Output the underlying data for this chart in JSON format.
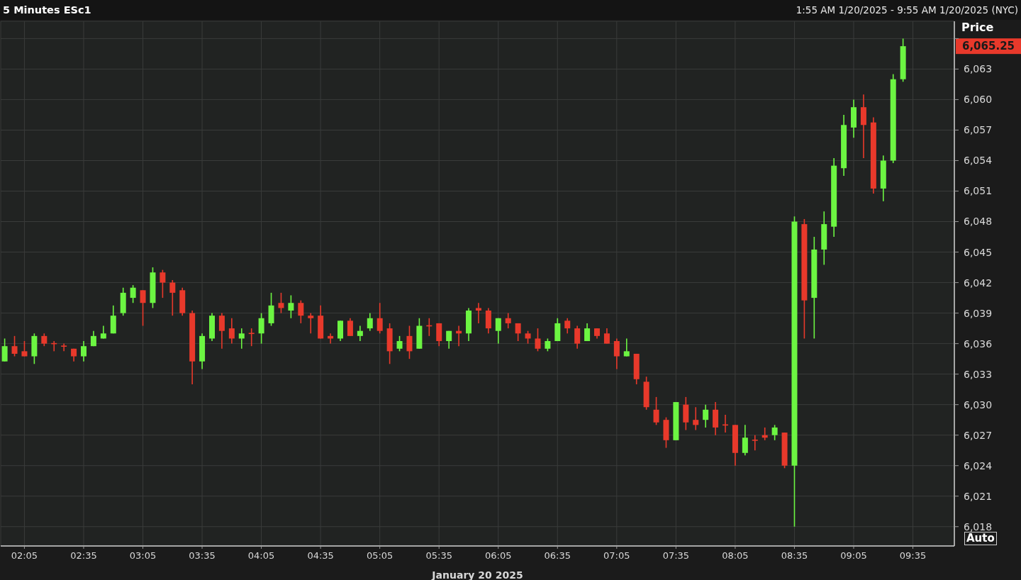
{
  "chart_data": {
    "type": "candlestick",
    "title": "5 Minutes ESc1",
    "subtitle": "1:55 AM 1/20/2025 - 9:55 AM 1/20/2025 (NYC)",
    "xlabel": "January 20 2025",
    "ylabel": "Price",
    "x": [
      "2025-01-20T01:55",
      "2025-01-20T02:00",
      "2025-01-20T02:05",
      "2025-01-20T02:10",
      "2025-01-20T02:15",
      "2025-01-20T02:20",
      "2025-01-20T02:25",
      "2025-01-20T02:30",
      "2025-01-20T02:35",
      "2025-01-20T02:40",
      "2025-01-20T02:45",
      "2025-01-20T02:50",
      "2025-01-20T02:55",
      "2025-01-20T03:00",
      "2025-01-20T03:05",
      "2025-01-20T03:10",
      "2025-01-20T03:15",
      "2025-01-20T03:20",
      "2025-01-20T03:25",
      "2025-01-20T03:30",
      "2025-01-20T03:35",
      "2025-01-20T03:40",
      "2025-01-20T03:45",
      "2025-01-20T03:50",
      "2025-01-20T03:55",
      "2025-01-20T04:00",
      "2025-01-20T04:05",
      "2025-01-20T04:10",
      "2025-01-20T04:15",
      "2025-01-20T04:20",
      "2025-01-20T04:25",
      "2025-01-20T04:30",
      "2025-01-20T04:35",
      "2025-01-20T04:40",
      "2025-01-20T04:45",
      "2025-01-20T04:50",
      "2025-01-20T04:55",
      "2025-01-20T05:00",
      "2025-01-20T05:05",
      "2025-01-20T05:10",
      "2025-01-20T05:15",
      "2025-01-20T05:20",
      "2025-01-20T05:25",
      "2025-01-20T05:30",
      "2025-01-20T05:35",
      "2025-01-20T05:40",
      "2025-01-20T05:45",
      "2025-01-20T05:50",
      "2025-01-20T05:55",
      "2025-01-20T06:00",
      "2025-01-20T06:05",
      "2025-01-20T06:10",
      "2025-01-20T06:15",
      "2025-01-20T06:20",
      "2025-01-20T06:25",
      "2025-01-20T06:30",
      "2025-01-20T06:35",
      "2025-01-20T06:40",
      "2025-01-20T06:45",
      "2025-01-20T06:50",
      "2025-01-20T06:55",
      "2025-01-20T07:00",
      "2025-01-20T07:05",
      "2025-01-20T07:10",
      "2025-01-20T07:15",
      "2025-01-20T07:20",
      "2025-01-20T07:25",
      "2025-01-20T07:30",
      "2025-01-20T07:35",
      "2025-01-20T07:40",
      "2025-01-20T07:45",
      "2025-01-20T07:50",
      "2025-01-20T07:55",
      "2025-01-20T08:00",
      "2025-01-20T08:05",
      "2025-01-20T08:10",
      "2025-01-20T08:15",
      "2025-01-20T08:20",
      "2025-01-20T08:25",
      "2025-01-20T08:30",
      "2025-01-20T08:35",
      "2025-01-20T08:40",
      "2025-01-20T08:45",
      "2025-01-20T08:50",
      "2025-01-20T08:55",
      "2025-01-20T09:00",
      "2025-01-20T09:05",
      "2025-01-20T09:10",
      "2025-01-20T09:15",
      "2025-01-20T09:20",
      "2025-01-20T09:25",
      "2025-01-20T09:30"
    ],
    "ohlc": [
      [
        6034.25,
        6036.5,
        6034.25,
        6035.75
      ],
      [
        6035.75,
        6036.75,
        6034.75,
        6035
      ],
      [
        6035.25,
        6036.25,
        6034.75,
        6034.75
      ],
      [
        6034.75,
        6037,
        6034,
        6036.75
      ],
      [
        6036.75,
        6037,
        6035.75,
        6036
      ],
      [
        6036,
        6036.25,
        6035.25,
        6036
      ],
      [
        6035.75,
        6036,
        6035.25,
        6035.75
      ],
      [
        6035.5,
        6035.5,
        6034.25,
        6034.75
      ],
      [
        6034.75,
        6036.25,
        6034.25,
        6035.75
      ],
      [
        6035.75,
        6037.25,
        6035.75,
        6036.75
      ],
      [
        6036.5,
        6037.75,
        6036.5,
        6037
      ],
      [
        6037,
        6039.75,
        6037,
        6038.75
      ],
      [
        6039,
        6041.5,
        6038.75,
        6041
      ],
      [
        6040.5,
        6041.75,
        6040,
        6041.5
      ],
      [
        6041.25,
        6041.25,
        6037.75,
        6040
      ],
      [
        6040,
        6043.5,
        6039.5,
        6043
      ],
      [
        6043,
        6043.25,
        6040.5,
        6042
      ],
      [
        6042,
        6042.25,
        6038.75,
        6041
      ],
      [
        6041.25,
        6041.5,
        6038.75,
        6039
      ],
      [
        6039,
        6039.25,
        6032,
        6034.25
      ],
      [
        6034.25,
        6037,
        6033.5,
        6036.75
      ],
      [
        6036.5,
        6039,
        6036.25,
        6038.75
      ],
      [
        6038.75,
        6039,
        6035.5,
        6037.25
      ],
      [
        6037.5,
        6038.5,
        6036,
        6036.5
      ],
      [
        6036.5,
        6037.5,
        6035.5,
        6037
      ],
      [
        6037,
        6037.5,
        6035.75,
        6037
      ],
      [
        6037,
        6039,
        6036,
        6038.5
      ],
      [
        6038,
        6041,
        6037.75,
        6039.75
      ],
      [
        6040,
        6041,
        6039,
        6039.5
      ],
      [
        6039.25,
        6040.75,
        6038.5,
        6040
      ],
      [
        6040,
        6040.25,
        6038,
        6038.75
      ],
      [
        6038.75,
        6039,
        6037,
        6038.5
      ],
      [
        6038.75,
        6039.75,
        6036.5,
        6036.5
      ],
      [
        6036.75,
        6037,
        6036,
        6036.5
      ],
      [
        6036.5,
        6038.25,
        6036.25,
        6038.25
      ],
      [
        6038.25,
        6038.5,
        6036.75,
        6036.75
      ],
      [
        6036.75,
        6037.75,
        6036.25,
        6037.25
      ],
      [
        6037.5,
        6039,
        6037.25,
        6038.5
      ],
      [
        6038.5,
        6040,
        6037,
        6037.25
      ],
      [
        6037.5,
        6038,
        6034,
        6035.25
      ],
      [
        6035.5,
        6036.75,
        6035.25,
        6036.25
      ],
      [
        6036.75,
        6037.75,
        6034.5,
        6035.25
      ],
      [
        6035.5,
        6038.5,
        6035.5,
        6037.75
      ],
      [
        6037.75,
        6038.5,
        6036.75,
        6037.75
      ],
      [
        6038,
        6038,
        6035.75,
        6036.25
      ],
      [
        6036.25,
        6037.25,
        6035.5,
        6037.25
      ],
      [
        6037.25,
        6037.75,
        6035.75,
        6037
      ],
      [
        6037,
        6039.5,
        6036.25,
        6039.25
      ],
      [
        6039.5,
        6040,
        6038,
        6039.25
      ],
      [
        6039.25,
        6039.5,
        6037,
        6037.5
      ],
      [
        6037.25,
        6038.5,
        6036,
        6038.5
      ],
      [
        6038.5,
        6039,
        6037.5,
        6038
      ],
      [
        6038,
        6038,
        6036.25,
        6037
      ],
      [
        6037,
        6037.25,
        6036,
        6036.5
      ],
      [
        6036.5,
        6037.5,
        6035.25,
        6035.5
      ],
      [
        6035.5,
        6036.5,
        6035.25,
        6036.25
      ],
      [
        6036.25,
        6038.5,
        6036.25,
        6038
      ],
      [
        6038.25,
        6038.5,
        6037,
        6037.5
      ],
      [
        6037.5,
        6037.75,
        6035.5,
        6036
      ],
      [
        6036.25,
        6038,
        6036.25,
        6037.5
      ],
      [
        6037.5,
        6037.5,
        6036.5,
        6036.75
      ],
      [
        6037,
        6037.5,
        6036,
        6036
      ],
      [
        6036.25,
        6036.5,
        6033.5,
        6034.75
      ],
      [
        6034.75,
        6036.5,
        6034.75,
        6035.25
      ],
      [
        6035,
        6035,
        6032,
        6032.5
      ],
      [
        6032.25,
        6032.75,
        6029.5,
        6029.75
      ],
      [
        6029.5,
        6030.75,
        6028,
        6028.25
      ],
      [
        6028.5,
        6028.75,
        6025.75,
        6026.5
      ],
      [
        6026.5,
        6030.25,
        6026.5,
        6030.25
      ],
      [
        6030,
        6030.75,
        6027.5,
        6028.25
      ],
      [
        6028.5,
        6029.75,
        6027.5,
        6028
      ],
      [
        6028.5,
        6030,
        6027.75,
        6029.5
      ],
      [
        6029.5,
        6030.25,
        6027,
        6027.75
      ],
      [
        6028,
        6029,
        6027.25,
        6028
      ],
      [
        6028,
        6028,
        6024,
        6025.25
      ],
      [
        6025.25,
        6028,
        6025,
        6026.75
      ],
      [
        6026.5,
        6027,
        6025.5,
        6026.5
      ],
      [
        6027,
        6027.75,
        6026.5,
        6026.75
      ],
      [
        6027,
        6028,
        6026.5,
        6027.75
      ],
      [
        6027.25,
        6027.25,
        6023.75,
        6024
      ],
      [
        6024,
        6048.5,
        6018,
        6048
      ],
      [
        6047.75,
        6048.25,
        6036.5,
        6040.25
      ],
      [
        6040.5,
        6046.5,
        6036.5,
        6045.25
      ],
      [
        6045.25,
        6049,
        6043.75,
        6047.75
      ],
      [
        6047.5,
        6054.25,
        6046.5,
        6053.5
      ],
      [
        6053.25,
        6058.5,
        6052.5,
        6057.5
      ],
      [
        6057.25,
        6060,
        6056.25,
        6059.25
      ],
      [
        6059.25,
        6060.5,
        6054.25,
        6057.5
      ],
      [
        6057.75,
        6058.25,
        6050.75,
        6051.25
      ],
      [
        6051.25,
        6054.5,
        6050,
        6054
      ],
      [
        6054,
        6062.5,
        6053.75,
        6062
      ],
      [
        6062,
        6066,
        6061.75,
        6065.25
      ]
    ],
    "colors": [
      "#6cf542",
      "#e8392b",
      "#e8392b",
      "#6cf542",
      "#e8392b",
      "#e8392b",
      "#e8392b",
      "#e8392b",
      "#6cf542",
      "#6cf542",
      "#6cf542",
      "#6cf542",
      "#6cf542",
      "#6cf542",
      "#e8392b",
      "#6cf542",
      "#e8392b",
      "#e8392b",
      "#e8392b",
      "#e8392b",
      "#6cf542",
      "#6cf542",
      "#e8392b",
      "#e8392b",
      "#6cf542",
      "#e8392b",
      "#6cf542",
      "#6cf542",
      "#e8392b",
      "#6cf542",
      "#e8392b",
      "#e8392b",
      "#e8392b",
      "#e8392b",
      "#6cf542",
      "#e8392b",
      "#6cf542",
      "#6cf542",
      "#e8392b",
      "#e8392b",
      "#6cf542",
      "#e8392b",
      "#6cf542",
      "#e8392b",
      "#e8392b",
      "#6cf542",
      "#e8392b",
      "#6cf542",
      "#e8392b",
      "#e8392b",
      "#6cf542",
      "#e8392b",
      "#e8392b",
      "#e8392b",
      "#e8392b",
      "#6cf542",
      "#6cf542",
      "#e8392b",
      "#e8392b",
      "#6cf542",
      "#e8392b",
      "#e8392b",
      "#e8392b",
      "#6cf542",
      "#e8392b",
      "#e8392b",
      "#e8392b",
      "#e8392b",
      "#6cf542",
      "#e8392b",
      "#e8392b",
      "#6cf542",
      "#e8392b",
      "#e8392b",
      "#e8392b",
      "#6cf542",
      "#e8392b",
      "#e8392b",
      "#6cf542",
      "#e8392b",
      "#6cf542",
      "#e8392b",
      "#6cf542",
      "#6cf542",
      "#6cf542",
      "#6cf542",
      "#6cf542",
      "#e8392b",
      "#e8392b",
      "#6cf542",
      "#6cf542",
      "#6cf542"
    ],
    "xlim": [
      "2025-01-20T01:53",
      "2025-01-20T09:56"
    ],
    "xticks": [
      {
        "value": "2025-01-20T02:05",
        "label": "02:05"
      },
      {
        "value": "2025-01-20T02:35",
        "label": "02:35"
      },
      {
        "value": "2025-01-20T03:05",
        "label": "03:05"
      },
      {
        "value": "2025-01-20T03:35",
        "label": "03:35"
      },
      {
        "value": "2025-01-20T04:05",
        "label": "04:05"
      },
      {
        "value": "2025-01-20T04:35",
        "label": "04:35"
      },
      {
        "value": "2025-01-20T05:05",
        "label": "05:05"
      },
      {
        "value": "2025-01-20T05:35",
        "label": "05:35"
      },
      {
        "value": "2025-01-20T06:05",
        "label": "06:05"
      },
      {
        "value": "2025-01-20T06:35",
        "label": "06:35"
      },
      {
        "value": "2025-01-20T07:05",
        "label": "07:05"
      },
      {
        "value": "2025-01-20T07:35",
        "label": "07:35"
      },
      {
        "value": "2025-01-20T08:05",
        "label": "08:05"
      },
      {
        "value": "2025-01-20T08:35",
        "label": "08:35"
      },
      {
        "value": "2025-01-20T09:05",
        "label": "09:05"
      },
      {
        "value": "2025-01-20T09:35",
        "label": "09:35"
      }
    ],
    "ylim": [
      6016.1,
      6067.7
    ],
    "yticks": [
      {
        "value": 6018,
        "label": "6,018"
      },
      {
        "value": 6021,
        "label": "6,021"
      },
      {
        "value": 6024,
        "label": "6,024"
      },
      {
        "value": 6027,
        "label": "6,027"
      },
      {
        "value": 6030,
        "label": "6,030"
      },
      {
        "value": 6033,
        "label": "6,033"
      },
      {
        "value": 6036,
        "label": "6,036"
      },
      {
        "value": 6039,
        "label": "6,039"
      },
      {
        "value": 6042,
        "label": "6,042"
      },
      {
        "value": 6045,
        "label": "6,045"
      },
      {
        "value": 6048,
        "label": "6,048"
      },
      {
        "value": 6051,
        "label": "6,051"
      },
      {
        "value": 6054,
        "label": "6,054"
      },
      {
        "value": 6057,
        "label": "6,057"
      },
      {
        "value": 6060,
        "label": "6,060"
      },
      {
        "value": 6063,
        "label": "6,063"
      },
      {
        "value": 6066,
        "label": null
      }
    ],
    "grid": true,
    "annotations": [
      "6,065.25",
      "Auto"
    ]
  }
}
